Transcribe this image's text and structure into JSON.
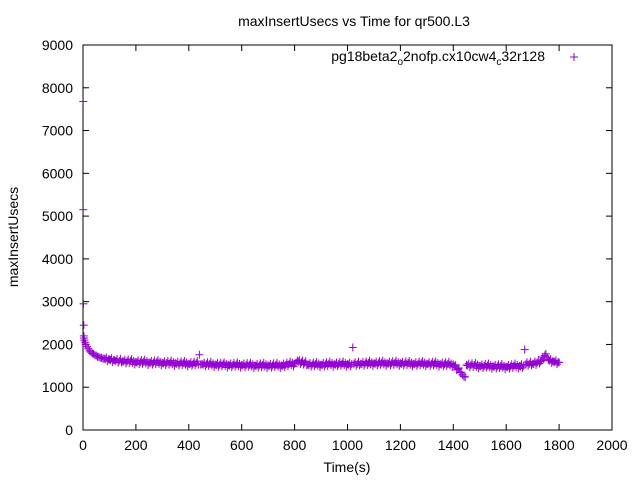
{
  "chart_data": {
    "type": "scatter",
    "title": "maxInsertUsecs vs Time for qr500.L3",
    "xlabel": "Time(s)",
    "ylabel": "maxInsertUsecs",
    "xlim": [
      0,
      2000
    ],
    "ylim": [
      0,
      9000
    ],
    "xticks": [
      "0",
      "200",
      "400",
      "600",
      "800",
      "1000",
      "1200",
      "1400",
      "1600",
      "1800",
      "2000"
    ],
    "yticks": [
      "0",
      "1000",
      "2000",
      "3000",
      "4000",
      "5000",
      "6000",
      "7000",
      "8000",
      "9000"
    ],
    "grid": false,
    "legend_position": "top-right",
    "marker": "+",
    "series": [
      {
        "name_parts": [
          "pg18beta2",
          "o",
          "2nofp.cx10cw4",
          "c",
          "32r128"
        ],
        "color": "#9400d3",
        "points": [
          [
            1,
            7680
          ],
          [
            1,
            5150
          ],
          [
            2,
            2950
          ],
          [
            3,
            2450
          ],
          [
            3,
            2200
          ],
          [
            4,
            2150
          ],
          [
            5,
            2100
          ],
          [
            8,
            2050
          ],
          [
            10,
            2000
          ],
          [
            15,
            1950
          ],
          [
            20,
            1900
          ],
          [
            25,
            1850
          ],
          [
            30,
            1820
          ],
          [
            40,
            1780
          ],
          [
            50,
            1740
          ],
          [
            60,
            1710
          ],
          [
            70,
            1690
          ],
          [
            80,
            1670
          ],
          [
            100,
            1650
          ],
          [
            120,
            1630
          ],
          [
            150,
            1610
          ],
          [
            200,
            1590
          ],
          [
            250,
            1580
          ],
          [
            300,
            1570
          ],
          [
            350,
            1560
          ],
          [
            400,
            1550
          ],
          [
            440,
            1760
          ],
          [
            450,
            1540
          ],
          [
            500,
            1530
          ],
          [
            550,
            1520
          ],
          [
            600,
            1520
          ],
          [
            650,
            1510
          ],
          [
            700,
            1510
          ],
          [
            750,
            1510
          ],
          [
            800,
            1550
          ],
          [
            810,
            1620
          ],
          [
            850,
            1530
          ],
          [
            900,
            1530
          ],
          [
            950,
            1540
          ],
          [
            1000,
            1540
          ],
          [
            1020,
            1930
          ],
          [
            1050,
            1550
          ],
          [
            1100,
            1560
          ],
          [
            1150,
            1560
          ],
          [
            1200,
            1560
          ],
          [
            1250,
            1550
          ],
          [
            1300,
            1550
          ],
          [
            1350,
            1540
          ],
          [
            1400,
            1530
          ],
          [
            1430,
            1350
          ],
          [
            1440,
            1250
          ],
          [
            1450,
            1520
          ],
          [
            1500,
            1500
          ],
          [
            1550,
            1490
          ],
          [
            1600,
            1480
          ],
          [
            1650,
            1500
          ],
          [
            1670,
            1880
          ],
          [
            1700,
            1550
          ],
          [
            1730,
            1600
          ],
          [
            1750,
            1780
          ],
          [
            1760,
            1640
          ],
          [
            1780,
            1600
          ],
          [
            1800,
            1580
          ]
        ]
      }
    ]
  }
}
